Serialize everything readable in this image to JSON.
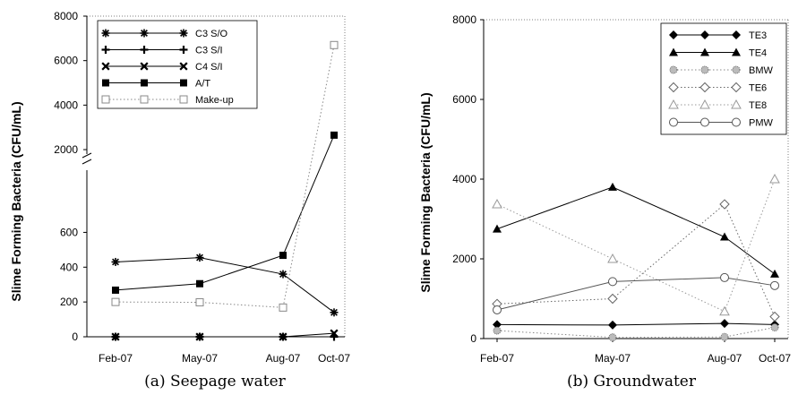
{
  "chart_data": [
    {
      "type": "line",
      "caption": "(a)  Seepage  water",
      "ylabel": "Slime Forming Bacteria (CFU/mL)",
      "categories": [
        "Feb-07",
        "May-07",
        "Aug-07",
        "Oct-07"
      ],
      "y_axis_break": true,
      "y_ticks_lower": [
        "0",
        "200",
        "400",
        "600"
      ],
      "y_ticks_upper": [
        "2000",
        "4000",
        "6000",
        "8000"
      ],
      "ylim_lower": [
        0,
        700
      ],
      "ylim_upper": [
        1800,
        8000
      ],
      "legend_position": "top-left",
      "series": [
        {
          "name": "C3 S/O",
          "marker": "asterisk",
          "color": "#000000",
          "line": "solid",
          "values": [
            430,
            455,
            360,
            140
          ]
        },
        {
          "name": "C3 S/I",
          "marker": "plus",
          "color": "#000000",
          "line": "solid",
          "values": [
            0,
            0,
            0,
            0
          ]
        },
        {
          "name": "C4 S/I",
          "marker": "x",
          "color": "#000000",
          "line": "solid",
          "values": [
            0,
            0,
            0,
            20
          ]
        },
        {
          "name": "A/T",
          "marker": "filled-square",
          "color": "#000000",
          "line": "solid",
          "values": [
            268,
            305,
            468,
            2650
          ]
        },
        {
          "name": "Make-up",
          "marker": "open-square",
          "color": "#888888",
          "line": "dotted",
          "values": [
            200,
            198,
            168,
            6700
          ]
        }
      ]
    },
    {
      "type": "line",
      "caption": "(b)  Groundwater",
      "ylabel": "Slime Forming Bacteria (CFU/mL)",
      "categories": [
        "Feb-07",
        "May-07",
        "Aug-07",
        "Oct-07"
      ],
      "y_ticks": [
        "0",
        "2000",
        "4000",
        "6000",
        "8000"
      ],
      "ylim": [
        0,
        8000
      ],
      "legend_position": "top-right",
      "series": [
        {
          "name": "TE3",
          "marker": "filled-diamond",
          "color": "#000000",
          "line": "solid",
          "values": [
            350,
            340,
            380,
            350
          ]
        },
        {
          "name": "TE4",
          "marker": "filled-triangle",
          "color": "#000000",
          "line": "solid",
          "values": [
            2750,
            3800,
            2550,
            1620
          ]
        },
        {
          "name": "BMW",
          "marker": "dotted-circle",
          "color": "#888888",
          "line": "dotted",
          "values": [
            200,
            30,
            40,
            280
          ]
        },
        {
          "name": "TE6",
          "marker": "open-diamond",
          "color": "#666666",
          "line": "dotted",
          "values": [
            870,
            1000,
            3370,
            550
          ]
        },
        {
          "name": "TE8",
          "marker": "open-triangle",
          "color": "#999999",
          "line": "dotted",
          "values": [
            3370,
            2000,
            680,
            4000
          ]
        },
        {
          "name": "PMW",
          "marker": "open-circle",
          "color": "#555555",
          "line": "solid",
          "values": [
            720,
            1430,
            1530,
            1330
          ]
        }
      ]
    }
  ]
}
